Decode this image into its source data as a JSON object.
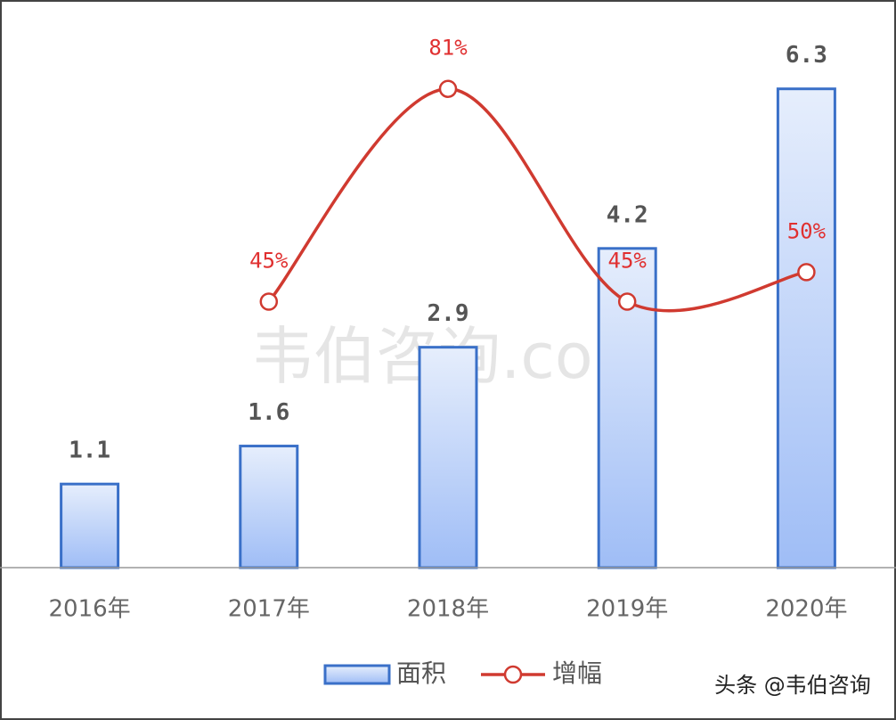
{
  "chart_data": {
    "type": "combo",
    "categories": [
      "2016年",
      "2017年",
      "2018年",
      "2019年",
      "2020年"
    ],
    "series": [
      {
        "name": "面积",
        "type": "bar",
        "color": "#3a70c8",
        "values": [
          1.1,
          1.6,
          2.9,
          4.2,
          6.3
        ]
      },
      {
        "name": "增幅",
        "type": "line",
        "axis": "y2",
        "color": "#d03a30",
        "values": [
          null,
          45,
          81,
          45,
          50
        ],
        "value_labels": [
          null,
          "45%",
          "81%",
          "45%",
          "50%"
        ]
      }
    ],
    "ylim": [
      0,
      7
    ],
    "y2lim": [
      0,
      90
    ],
    "legend": "bottom",
    "watermark": "韦伯咨询.com",
    "source": "头条 @韦伯咨询"
  }
}
